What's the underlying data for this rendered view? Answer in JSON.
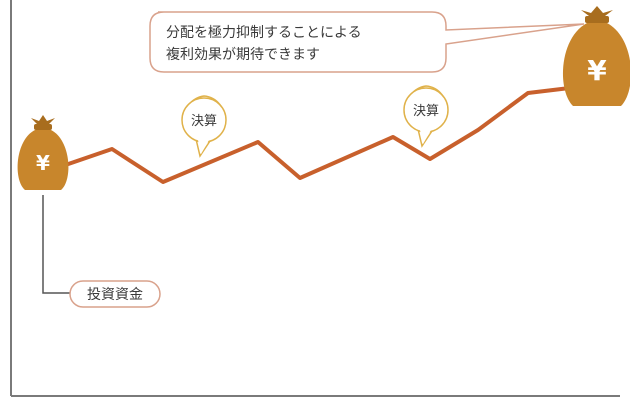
{
  "callout": {
    "line1": "分配を極力抑制することによる",
    "line2": "複利効果が期待できます"
  },
  "settlement_label": "決算",
  "settlement_bubbles": [
    {
      "text": "決算"
    },
    {
      "text": "決算"
    }
  ],
  "investment_label": "投資資金",
  "money_bag_symbol": "¥",
  "colors": {
    "line": "#c8602c",
    "bag": "#c8862c",
    "bag_dark": "#a86d1e",
    "callout_border": "#d9a28c",
    "bubble_border": "#e0b24a",
    "axis": "#666666"
  }
}
